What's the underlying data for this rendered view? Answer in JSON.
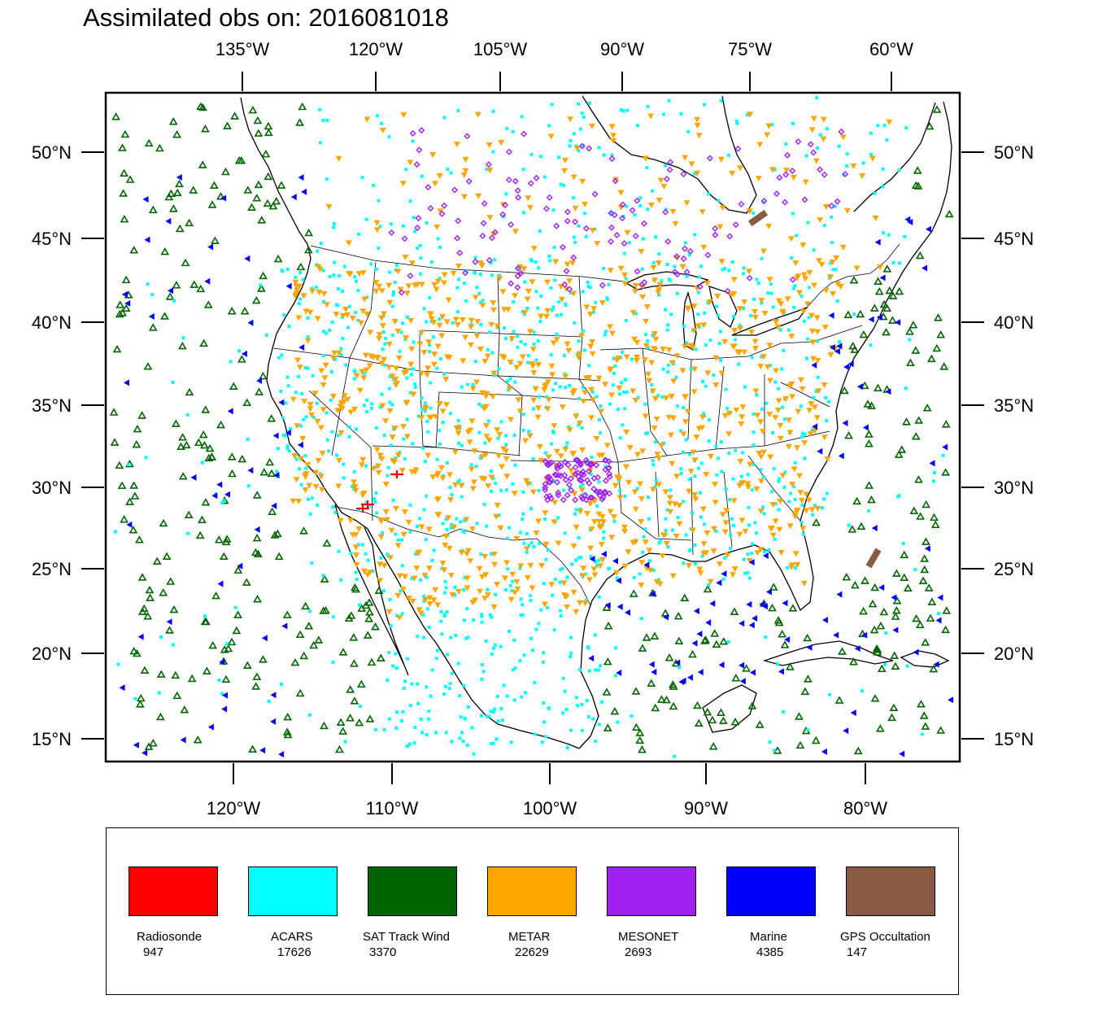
{
  "title": "Assimilated obs on: 2016081018",
  "map": {
    "outer_top_labels": [
      "135°W",
      "120°W",
      "105°W",
      "90°W",
      "75°W",
      "60°W"
    ],
    "outer_bottom_labels": [
      "120°W",
      "110°W",
      "100°W",
      "90°W",
      "80°W"
    ],
    "lat_labels": [
      "50°N",
      "45°N",
      "40°N",
      "35°N",
      "30°N",
      "25°N",
      "20°N",
      "15°N"
    ],
    "coastline_color": "#000000",
    "border_color": "#000000"
  },
  "legend": {
    "items": [
      {
        "name": "Radiosonde",
        "count": "947",
        "color": "#ff0000",
        "marker": "cross"
      },
      {
        "name": "ACARS",
        "count": "17626",
        "color": "#00ffff",
        "marker": "square"
      },
      {
        "name": "SAT Track Wind",
        "count": "3370",
        "color": "#006400",
        "marker": "triangle-up"
      },
      {
        "name": "METAR",
        "count": "22629",
        "color": "#ffa500",
        "marker": "triangle-down"
      },
      {
        "name": "MESONET",
        "count": "2693",
        "color": "#a020f0",
        "marker": "diamond"
      },
      {
        "name": "Marine",
        "count": "4385",
        "color": "#0000ff",
        "marker": "triangle-left"
      },
      {
        "name": "GPS Occultation",
        "count": "147",
        "color": "#8b5a45",
        "marker": "bar"
      }
    ]
  }
}
